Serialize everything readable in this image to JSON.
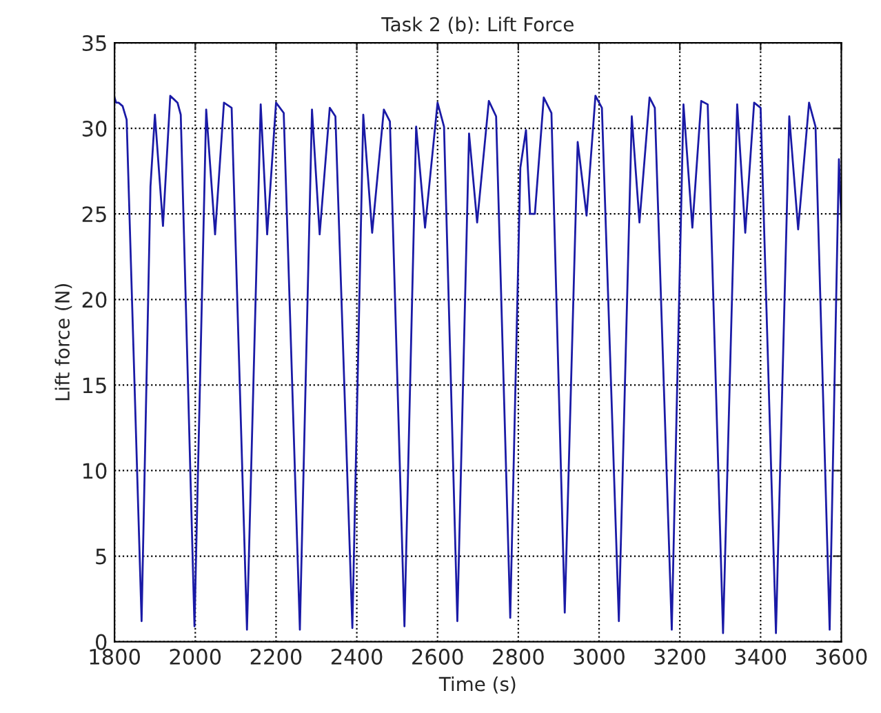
{
  "chart_data": {
    "type": "line",
    "title": "Task 2 (b): Lift Force",
    "xlabel": "Time (s)",
    "ylabel": "Lift force (N)",
    "xlim": [
      1800,
      3600
    ],
    "xticks": [
      1800,
      2000,
      2200,
      2400,
      2600,
      2800,
      3000,
      3200,
      3400,
      3600
    ],
    "ylim": [
      0,
      35
    ],
    "yticks": [
      0,
      5,
      10,
      15,
      20,
      25,
      30,
      35
    ],
    "grid": true,
    "line_style": "solid",
    "marker": "none",
    "series": [
      {
        "color": "#1a1aa6",
        "x": [
          1800,
          1804,
          1810,
          1820,
          1830,
          1867,
          1889,
          1900,
          1920,
          1938,
          1956,
          1964,
          1998,
          2027,
          2049,
          2071,
          2090,
          2128,
          2162,
          2178,
          2200,
          2219,
          2259,
          2289,
          2308,
          2333,
          2347,
          2389,
          2416,
          2438,
          2467,
          2482,
          2518,
          2547,
          2569,
          2600,
          2616,
          2649,
          2678,
          2698,
          2727,
          2745,
          2780,
          2805,
          2819,
          2829,
          2841,
          2863,
          2882,
          2915,
          2947,
          2969,
          2991,
          3007,
          3049,
          3081,
          3100,
          3125,
          3138,
          3180,
          3209,
          3231,
          3253,
          3269,
          3307,
          3342,
          3362,
          3384,
          3400,
          3438,
          3471,
          3493,
          3520,
          3536,
          3571,
          3594,
          3600
        ],
        "values": [
          31.8,
          31.5,
          31.5,
          31.3,
          30.5,
          1.2,
          26.6,
          30.8,
          24.3,
          31.9,
          31.5,
          30.8,
          0.9,
          31.1,
          23.8,
          31.5,
          31.2,
          0.7,
          31.4,
          23.8,
          31.5,
          30.9,
          0.7,
          31.1,
          23.8,
          31.2,
          30.7,
          0.8,
          30.8,
          23.9,
          31.1,
          30.4,
          0.9,
          30.1,
          24.2,
          31.5,
          30.1,
          1.2,
          29.7,
          24.5,
          31.6,
          30.7,
          1.4,
          27.7,
          29.9,
          25.0,
          25.0,
          31.8,
          30.9,
          1.7,
          29.2,
          24.9,
          31.9,
          31.2,
          1.2,
          30.7,
          24.5,
          31.8,
          31.2,
          0.7,
          31.4,
          24.2,
          31.6,
          31.4,
          0.5,
          31.4,
          23.9,
          31.5,
          31.2,
          0.5,
          30.7,
          24.1,
          31.5,
          30.1,
          0.7,
          28.2,
          24.6
        ]
      }
    ]
  }
}
